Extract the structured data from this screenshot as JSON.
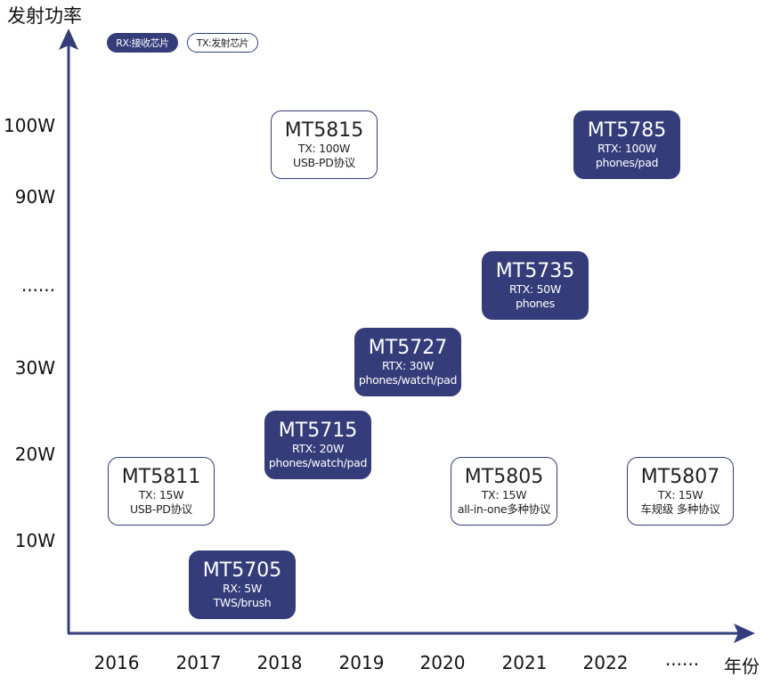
{
  "title": "发射功率",
  "legend": {
    "rx": "RX:接收芯片",
    "tx": "TX:发射芯片"
  },
  "colors": {
    "rx_fill": "#343d7a",
    "tx_border": "#343d7a",
    "axis": "#343d7a"
  },
  "y_axis": {
    "labels": [
      "100W",
      "90W",
      "......",
      "30W",
      "20W",
      "10W"
    ]
  },
  "x_axis": {
    "labels": [
      "2016",
      "2017",
      "2018",
      "2019",
      "2020",
      "2021",
      "2022",
      "......"
    ],
    "title": "年份"
  },
  "chips": [
    {
      "name": "MT5815",
      "type": "tx",
      "power": "TX: 100W",
      "desc": "USB-PD协议"
    },
    {
      "name": "MT5785",
      "type": "rx",
      "power": "RTX: 100W",
      "desc": "phones/pad"
    },
    {
      "name": "MT5735",
      "type": "rx",
      "power": "RTX: 50W",
      "desc": "phones"
    },
    {
      "name": "MT5727",
      "type": "rx",
      "power": "RTX: 30W",
      "desc": "phones/watch/pad"
    },
    {
      "name": "MT5715",
      "type": "rx",
      "power": "RTX: 20W",
      "desc": "phones/watch/pad"
    },
    {
      "name": "MT5811",
      "type": "tx",
      "power": "TX: 15W",
      "desc": "USB-PD协议"
    },
    {
      "name": "MT5805",
      "type": "tx",
      "power": "TX: 15W",
      "desc": "all-in-one多种协议"
    },
    {
      "name": "MT5807",
      "type": "tx",
      "power": "TX: 15W",
      "desc": "车规级 多种协议"
    },
    {
      "name": "MT5705",
      "type": "rx",
      "power": "RX: 5W",
      "desc": "TWS/brush"
    }
  ]
}
